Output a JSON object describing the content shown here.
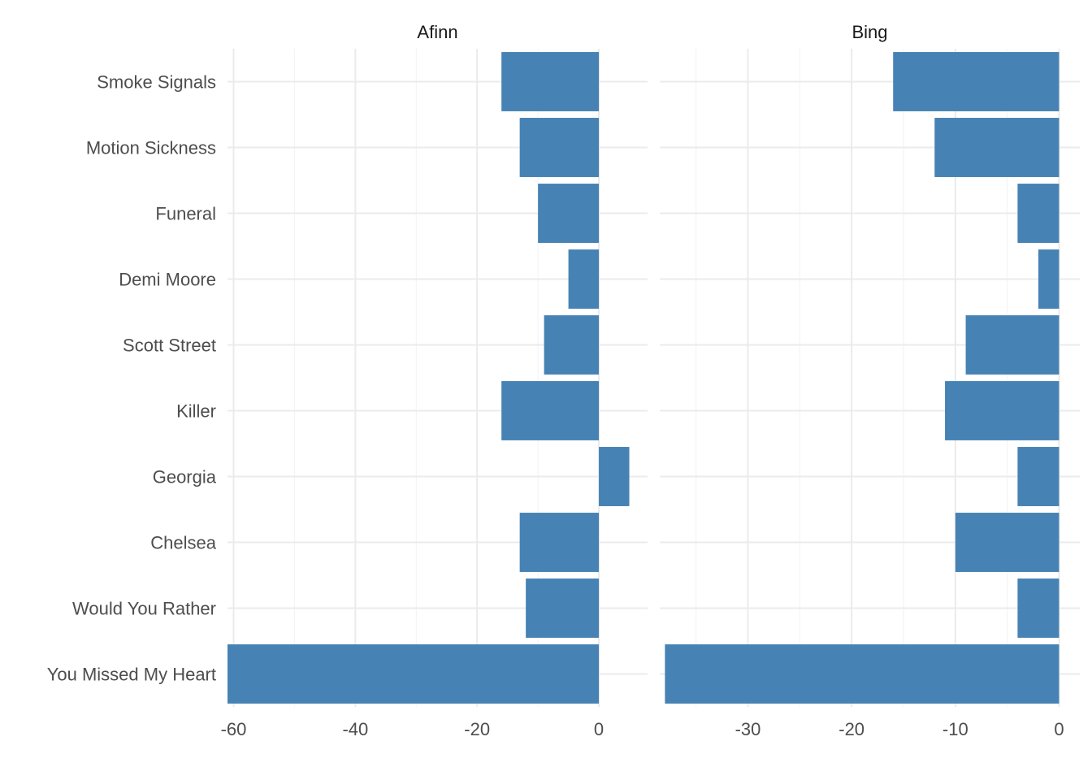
{
  "chart_data": {
    "type": "bar",
    "orientation": "horizontal",
    "facet_layout": "side-by-side",
    "categories": [
      "Smoke Signals",
      "Motion Sickness",
      "Funeral",
      "Demi Moore",
      "Scott Street",
      "Killer",
      "Georgia",
      "Chelsea",
      "Would You Rather",
      "You Missed My Heart"
    ],
    "bar_color": "#4682b4",
    "grid": true,
    "facets": [
      {
        "title": "Afinn",
        "values": [
          -16,
          -13,
          -10,
          -5,
          -9,
          -16,
          5,
          -13,
          -12,
          -61
        ],
        "xlim": [
          -61,
          8
        ],
        "ticks": [
          -60,
          -40,
          -20,
          0
        ],
        "tick_labels": [
          "-60",
          "-40",
          "-20",
          "0"
        ]
      },
      {
        "title": "Bing",
        "values": [
          -16,
          -12,
          -4,
          -2,
          -9,
          -11,
          -4,
          -10,
          -4,
          -38
        ],
        "xlim": [
          -38.5,
          2
        ],
        "ticks": [
          -30,
          -20,
          -10,
          0
        ],
        "tick_labels": [
          "-30",
          "-20",
          "-10",
          "0"
        ]
      }
    ]
  }
}
